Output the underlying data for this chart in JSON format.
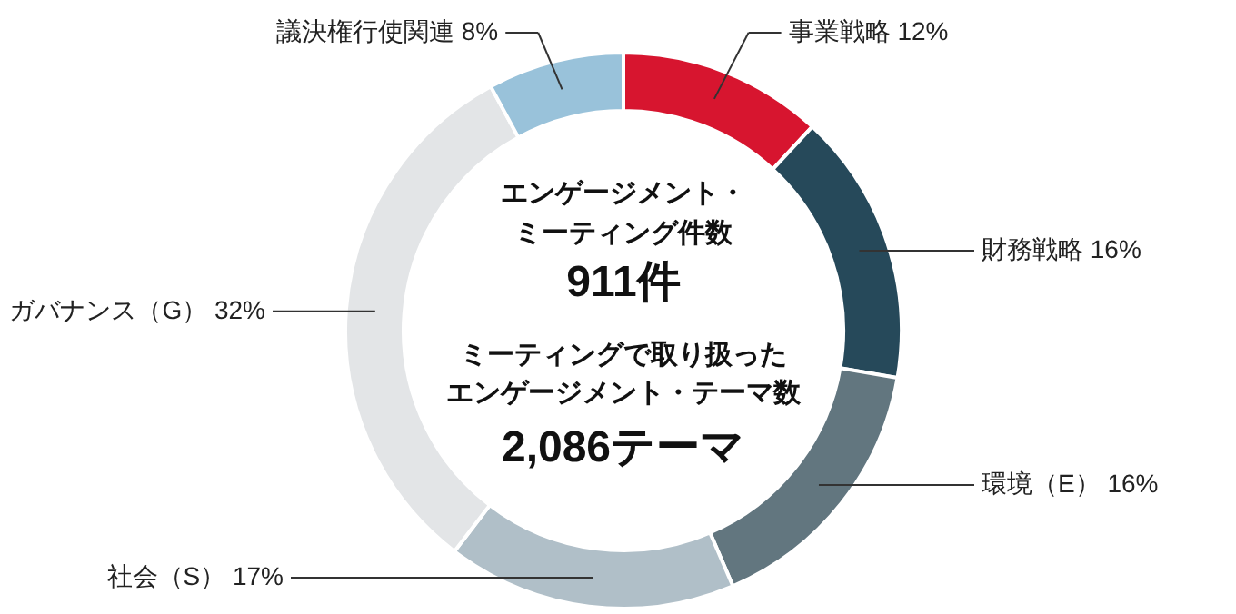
{
  "chart_data": {
    "type": "donut",
    "categories": [
      "事業戦略",
      "財務戦略",
      "環境（E）",
      "社会（S）",
      "ガバナンス（G）",
      "議決権行使関連"
    ],
    "values": [
      12,
      16,
      16,
      17,
      32,
      8
    ],
    "colors": [
      "#d7152f",
      "#26495a",
      "#62767f",
      "#b0bfc8",
      "#e3e5e7",
      "#99c2da"
    ],
    "value_labels": [
      "12%",
      "16%",
      "16%",
      "17%",
      "32%",
      "8%"
    ],
    "annotations": [
      "エンゲージメント・",
      "ミーティング件数",
      "911件",
      "ミーティングで取り扱った",
      "エンゲージメント・テーマ数",
      "2,086テーマ"
    ]
  }
}
